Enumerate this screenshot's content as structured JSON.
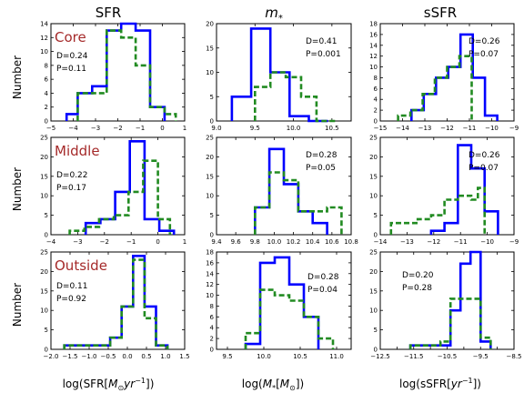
{
  "figure": {
    "column_titles": [
      "SFR",
      "m",
      "sSFR"
    ],
    "column_title_sub": "*",
    "row_ylabel": "Number",
    "xlabels": [
      {
        "pre": "log(SFR[",
        "m": "M",
        "sub": "⊙",
        "post": "yr",
        "sup": "−1",
        "end": "])"
      },
      {
        "pre": "log(",
        "m": "M",
        "sub": "*",
        "mid": "[",
        "m2": "M",
        "sub2": "⊙",
        "end": "])"
      },
      {
        "pre": "log(sSFR[",
        "post": "yr",
        "sup": "−1",
        "end": "])"
      }
    ],
    "region_labels": [
      "Core",
      "Middle",
      "Outside"
    ],
    "colors": {
      "solid": "#0000ff",
      "dashed": "#228b22",
      "region_label": "#a52a2a",
      "axes": "#000000"
    }
  },
  "chart_data": [
    {
      "type": "histogram",
      "row": 0,
      "col": 0,
      "region": "Core",
      "variable": "SFR",
      "xlim": [
        -5,
        1
      ],
      "ylim": [
        0,
        14
      ],
      "xticks": [
        -5,
        -4,
        -3,
        -2,
        -1,
        0,
        1
      ],
      "xtick_labels": [
        "−5",
        "−4",
        "−3",
        "−2",
        "−1",
        "0",
        "1"
      ],
      "yticks": [
        0,
        2,
        4,
        6,
        8,
        10,
        12,
        14
      ],
      "ytick_labels": [
        "0",
        "2",
        "4",
        "6",
        "8",
        "10",
        "12",
        "14"
      ],
      "stats": [
        "D=0.24",
        "P=0.11"
      ],
      "series": [
        {
          "style": "solid",
          "edges": [
            -4.3,
            -3.8,
            -3.15,
            -2.5,
            -1.85,
            -1.2,
            -0.55,
            0.1
          ],
          "counts": [
            1,
            4,
            5,
            13,
            14,
            13,
            2
          ]
        },
        {
          "style": "dashed",
          "edges": [
            -3.8,
            -3.15,
            -2.5,
            -1.85,
            -1.2,
            -0.55,
            0.1,
            0.6
          ],
          "counts": [
            4,
            4,
            13,
            12,
            8,
            2,
            1
          ]
        }
      ]
    },
    {
      "type": "histogram",
      "row": 0,
      "col": 1,
      "region": "Core",
      "variable": "m*",
      "xlim": [
        9.0,
        10.75
      ],
      "ylim": [
        0,
        20
      ],
      "xticks": [
        9.0,
        9.5,
        10.0,
        10.5
      ],
      "xtick_labels": [
        "9.0",
        "9.5",
        "10.0",
        "10.5"
      ],
      "yticks": [
        0,
        5,
        10,
        15,
        20
      ],
      "ytick_labels": [
        "0",
        "5",
        "10",
        "15",
        "20"
      ],
      "stats": [
        "D=0.41",
        "P=0.001"
      ],
      "series": [
        {
          "style": "solid",
          "edges": [
            9.2,
            9.45,
            9.7,
            9.95,
            10.2,
            10.45
          ],
          "counts": [
            5,
            19,
            10,
            1,
            0
          ]
        },
        {
          "style": "dashed",
          "edges": [
            9.5,
            9.7,
            9.9,
            10.1,
            10.3,
            10.55
          ],
          "counts": [
            7,
            10,
            9,
            5,
            0
          ]
        }
      ]
    },
    {
      "type": "histogram",
      "row": 0,
      "col": 2,
      "region": "Core",
      "variable": "sSFR",
      "xlim": [
        -15,
        -9
      ],
      "ylim": [
        0,
        18
      ],
      "xticks": [
        -15,
        -14,
        -13,
        -12,
        -11,
        -10,
        -9
      ],
      "xtick_labels": [
        "−15",
        "−14",
        "−13",
        "−12",
        "−11",
        "−10",
        "−9"
      ],
      "yticks": [
        0,
        2,
        4,
        6,
        8,
        10,
        12,
        14,
        16,
        18
      ],
      "ytick_labels": [
        "0",
        "2",
        "4",
        "6",
        "8",
        "10",
        "12",
        "14",
        "16",
        "18"
      ],
      "stats": [
        "D=0.26",
        "P=0.07"
      ],
      "series": [
        {
          "style": "solid",
          "edges": [
            -13.6,
            -13.05,
            -12.5,
            -11.95,
            -11.4,
            -10.85,
            -10.3,
            -9.75
          ],
          "counts": [
            2,
            5,
            8,
            10,
            16,
            8,
            1
          ]
        },
        {
          "style": "dashed",
          "edges": [
            -14.2,
            -13.65,
            -13.1,
            -12.55,
            -12,
            -11.45,
            -10.9
          ],
          "counts": [
            1,
            2,
            5,
            8,
            10,
            12
          ]
        }
      ]
    },
    {
      "type": "histogram",
      "row": 1,
      "col": 0,
      "region": "Middle",
      "variable": "SFR",
      "xlim": [
        -4,
        1
      ],
      "ylim": [
        0,
        25
      ],
      "xticks": [
        -4,
        -3,
        -2,
        -1,
        0,
        1
      ],
      "xtick_labels": [
        "−4",
        "−3",
        "−2",
        "−1",
        "0",
        "1"
      ],
      "yticks": [
        0,
        5,
        10,
        15,
        20,
        25
      ],
      "ytick_labels": [
        "0",
        "5",
        "10",
        "15",
        "20",
        "25"
      ],
      "stats": [
        "D=0.22",
        "P=0.17"
      ],
      "series": [
        {
          "style": "solid",
          "edges": [
            -2.7,
            -2.15,
            -1.6,
            -1.05,
            -0.5,
            0.05,
            0.6
          ],
          "counts": [
            3,
            4,
            11,
            24,
            4,
            1
          ]
        },
        {
          "style": "dashed",
          "edges": [
            -3.3,
            -2.75,
            -2.2,
            -1.65,
            -1.1,
            -0.55,
            0.0,
            0.45
          ],
          "counts": [
            1,
            2,
            4,
            5,
            11,
            19,
            4
          ]
        }
      ]
    },
    {
      "type": "histogram",
      "row": 1,
      "col": 1,
      "region": "Middle",
      "variable": "m*",
      "xlim": [
        9.4,
        10.8
      ],
      "ylim": [
        0,
        25
      ],
      "xticks": [
        9.4,
        9.6,
        9.8,
        10.0,
        10.2,
        10.4,
        10.6,
        10.8
      ],
      "xtick_labels": [
        "9.4",
        "9.6",
        "9.8",
        "10.0",
        "10.2",
        "10.4",
        "10.6",
        "10.8"
      ],
      "yticks": [
        0,
        5,
        10,
        15,
        20,
        25
      ],
      "ytick_labels": [
        "0",
        "5",
        "10",
        "15",
        "20",
        "25"
      ],
      "stats": [
        "D=0.28",
        "P=0.05"
      ],
      "series": [
        {
          "style": "solid",
          "edges": [
            9.8,
            9.95,
            10.1,
            10.25,
            10.4,
            10.55
          ],
          "counts": [
            7,
            22,
            13,
            6,
            3
          ]
        },
        {
          "style": "dashed",
          "edges": [
            9.8,
            9.95,
            10.1,
            10.25,
            10.4,
            10.55,
            10.7
          ],
          "counts": [
            7,
            16,
            14,
            6,
            6,
            7
          ]
        }
      ]
    },
    {
      "type": "histogram",
      "row": 1,
      "col": 2,
      "region": "Middle",
      "variable": "sSFR",
      "xlim": [
        -14,
        -9
      ],
      "ylim": [
        0,
        25
      ],
      "xticks": [
        -14,
        -13,
        -12,
        -11,
        -10,
        -9
      ],
      "xtick_labels": [
        "−14",
        "−13",
        "−12",
        "−11",
        "−10",
        "−9"
      ],
      "yticks": [
        0,
        5,
        10,
        15,
        20,
        25
      ],
      "ytick_labels": [
        "0",
        "5",
        "10",
        "15",
        "20",
        "25"
      ],
      "stats": [
        "D=0.26",
        "P=0.07"
      ],
      "series": [
        {
          "style": "solid",
          "edges": [
            -12.1,
            -11.6,
            -11.1,
            -10.6,
            -10.1,
            -9.6
          ],
          "counts": [
            1,
            3,
            23,
            17,
            6
          ]
        },
        {
          "style": "dashed",
          "edges": [
            -13.6,
            -13.1,
            -12.6,
            -12.1,
            -11.6,
            -11.1,
            -10.6,
            -10.35,
            -10.1
          ],
          "counts": [
            3,
            3,
            4,
            5,
            9,
            10,
            9,
            12
          ]
        }
      ]
    },
    {
      "type": "histogram",
      "row": 2,
      "col": 0,
      "region": "Outside",
      "variable": "SFR",
      "xlim": [
        -2.0,
        1.5
      ],
      "ylim": [
        0,
        25
      ],
      "xticks": [
        -2.0,
        -1.5,
        -1.0,
        -0.5,
        0.0,
        0.5,
        1.0,
        1.5
      ],
      "xtick_labels": [
        "−2.0",
        "−1.5",
        "−1.0",
        "−0.5",
        "0.0",
        "0.5",
        "1.0",
        "1.5"
      ],
      "yticks": [
        0,
        5,
        10,
        15,
        20,
        25
      ],
      "ytick_labels": [
        "0",
        "5",
        "10",
        "15",
        "20",
        "25"
      ],
      "stats": [
        "D=0.11",
        "P=0.92"
      ],
      "series": [
        {
          "style": "solid",
          "edges": [
            -1.65,
            -1.35,
            -1.05,
            -0.75,
            -0.45,
            -0.15,
            0.15,
            0.45,
            0.75,
            1.05
          ],
          "counts": [
            1,
            1,
            1,
            1,
            3,
            11,
            24,
            11,
            1
          ]
        },
        {
          "style": "dashed",
          "edges": [
            -1.65,
            -1.35,
            -1.05,
            -0.75,
            -0.45,
            -0.15,
            0.15,
            0.45,
            0.75,
            1.05
          ],
          "counts": [
            1,
            1,
            1,
            1,
            3,
            11,
            23,
            8,
            1
          ]
        }
      ]
    },
    {
      "type": "histogram",
      "row": 2,
      "col": 1,
      "region": "Outside",
      "variable": "m*",
      "xlim": [
        9.35,
        11.2
      ],
      "ylim": [
        0,
        18
      ],
      "xticks": [
        9.5,
        10.0,
        10.5,
        11.0
      ],
      "xtick_labels": [
        "9.5",
        "10.0",
        "10.5",
        "11.0"
      ],
      "yticks": [
        0,
        2,
        4,
        6,
        8,
        10,
        12,
        14,
        16,
        18
      ],
      "ytick_labels": [
        "0",
        "2",
        "4",
        "6",
        "8",
        "10",
        "12",
        "14",
        "16",
        "18"
      ],
      "stats": [
        "D=0.28",
        "P=0.04"
      ],
      "series": [
        {
          "style": "solid",
          "edges": [
            9.75,
            9.95,
            10.15,
            10.35,
            10.55,
            10.75
          ],
          "counts": [
            1,
            16,
            17,
            12,
            6
          ]
        },
        {
          "style": "dashed",
          "edges": [
            9.75,
            9.95,
            10.15,
            10.35,
            10.55,
            10.75,
            10.95
          ],
          "counts": [
            3,
            11,
            10,
            9,
            6,
            2
          ]
        }
      ]
    },
    {
      "type": "histogram",
      "row": 2,
      "col": 2,
      "region": "Outside",
      "variable": "sSFR",
      "xlim": [
        -12.5,
        -8.5
      ],
      "ylim": [
        0,
        25
      ],
      "xticks": [
        -12.5,
        -12.0,
        -11.5,
        -11.0,
        -10.5,
        -10.0,
        -9.5,
        -9.0,
        -8.5
      ],
      "xtick_labels": [
        "−12.5",
        "",
        "−11.5",
        "",
        "−10.5",
        "",
        "−9.5",
        "",
        "−8.5"
      ],
      "yticks": [
        0,
        5,
        10,
        15,
        20,
        25
      ],
      "ytick_labels": [
        "0",
        "5",
        "10",
        "15",
        "20",
        "25"
      ],
      "stats": [
        "D=0.20",
        "P=0.28"
      ],
      "series": [
        {
          "style": "solid",
          "edges": [
            -11.6,
            -11.3,
            -11.0,
            -10.7,
            -10.4,
            -10.1,
            -9.8,
            -9.5,
            -9.2
          ],
          "counts": [
            1,
            1,
            1,
            1,
            10,
            22,
            25,
            2
          ]
        },
        {
          "style": "dashed",
          "edges": [
            -11.6,
            -11.3,
            -11.0,
            -10.7,
            -10.4,
            -10.1,
            -9.8,
            -9.5,
            -9.2
          ],
          "counts": [
            1,
            1,
            1,
            2,
            13,
            13,
            13,
            3
          ]
        }
      ]
    }
  ]
}
